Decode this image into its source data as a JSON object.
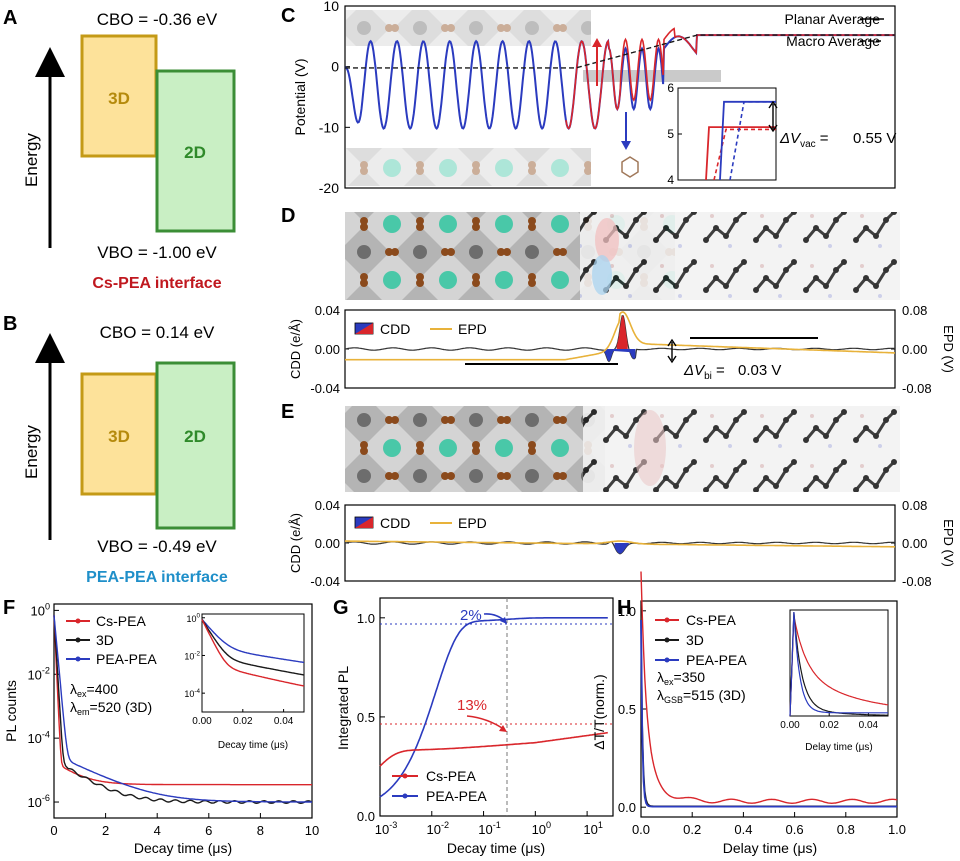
{
  "panel_labels": {
    "A": "A",
    "B": "B",
    "C": "C",
    "D": "D",
    "E": "E",
    "F": "F",
    "G": "G",
    "H": "H"
  },
  "panelA": {
    "cbo": "CBO = -0.36 eV",
    "vbo": "VBO = -1.00 eV",
    "box_3d": "3D",
    "box_2d": "2D",
    "energy": "Energy",
    "caption": "Cs-PEA interface",
    "caption_color": "#c0181f"
  },
  "panelB": {
    "cbo": "CBO = 0.14 eV",
    "vbo": "VBO = -0.49 eV",
    "box_3d": "3D",
    "box_2d": "2D",
    "energy": "Energy",
    "caption": "PEA-PEA interface",
    "caption_color": "#1f8fc9"
  },
  "colors": {
    "box_3d_fill": "#fde29a",
    "box_3d_stroke": "#c49a16",
    "box_3d_text": "#b58a0c",
    "box_2d_fill": "#c9efc4",
    "box_2d_stroke": "#3b8e36",
    "box_2d_text": "#2f8a2a",
    "red": "#d9262b",
    "blue": "#2b3bbf",
    "black": "#1a1a1a",
    "gold": "#e8b23a"
  },
  "chart_data": [
    {
      "id": "C",
      "type": "line",
      "ylabel": "Potential (V)",
      "ylim": [
        -20,
        10
      ],
      "yticks": [
        -20,
        -10,
        0,
        10
      ],
      "legend": [
        "Planar Average",
        "Macro Average"
      ],
      "annotation": "0.55 V",
      "inset": {
        "ylim": [
          4,
          6
        ],
        "yticks": [
          4,
          5,
          6
        ]
      }
    },
    {
      "id": "D",
      "type": "line",
      "ylabel_left": "CDD (e/Å)",
      "ylabel_right": "EPD (V)",
      "ylim_left": [
        -0.04,
        0.04
      ],
      "yticks_left": [
        "-0.04",
        "0.00",
        "0.04"
      ],
      "yticks_right": [
        "-0.08",
        "0.00",
        "0.08"
      ],
      "legend": [
        "CDD",
        "EPD"
      ],
      "annotation": "0.03 V"
    },
    {
      "id": "E",
      "type": "line",
      "ylabel_left": "CDD (e/Å)",
      "ylabel_right": "EPD (V)",
      "ylim_left": [
        -0.04,
        0.04
      ],
      "yticks_left": [
        "-0.04",
        "0.00",
        "0.04"
      ],
      "yticks_right": [
        "-0.08",
        "0.00",
        "0.08"
      ],
      "legend": [
        "CDD",
        "EPD"
      ]
    },
    {
      "id": "F",
      "type": "line",
      "xlabel": "Decay time (μs)",
      "ylabel": "PL counts",
      "xlim": [
        0,
        10
      ],
      "ylim_log": [
        -6.5,
        0.2
      ],
      "xticks": [
        0,
        2,
        4,
        6,
        8,
        10
      ],
      "yticks": [
        "10^0",
        "10^-2",
        "10^-4",
        "10^-6"
      ],
      "legend": [
        "Cs-PEA",
        "3D",
        "PEA-PEA"
      ],
      "notes": [
        "λex=400",
        "λem=520 (3D)"
      ],
      "inset": {
        "xlabel": "Decay time (μs)",
        "xticks": [
          "0.00",
          "0.02",
          "0.04"
        ],
        "yticks": [
          "10^0",
          "10^-2",
          "10^-4"
        ]
      }
    },
    {
      "id": "G",
      "type": "line",
      "xlabel": "Decay time (μs)",
      "ylabel": "Integrated PL",
      "xlim_log": [
        -3,
        1.5
      ],
      "ylim": [
        0,
        1.1
      ],
      "xticks": [
        "10^-3",
        "10^-2",
        "10^-1",
        "10^0",
        "10^1"
      ],
      "yticks": [
        "0.0",
        "0.5",
        "1.0"
      ],
      "legend": [
        "Cs-PEA",
        "PEA-PEA"
      ],
      "annotations": [
        "2%",
        "13%"
      ]
    },
    {
      "id": "H",
      "type": "line",
      "xlabel": "Delay time (μs)",
      "ylabel": "ΔT/T(norm.)",
      "xlim": [
        0,
        1
      ],
      "ylim": [
        -0.05,
        1.05
      ],
      "xticks": [
        "0.0",
        "0.2",
        "0.4",
        "0.6",
        "0.8",
        "1.0"
      ],
      "yticks": [
        "0.0",
        "0.5",
        "1.0"
      ],
      "legend": [
        "Cs-PEA",
        "3D",
        "PEA-PEA"
      ],
      "notes": [
        "λex=350",
        "λGSB=515 (3D)"
      ],
      "inset": {
        "xlabel": "Delay time (μs)",
        "xticks": [
          "0.00",
          "0.02",
          "0.04"
        ]
      }
    }
  ]
}
